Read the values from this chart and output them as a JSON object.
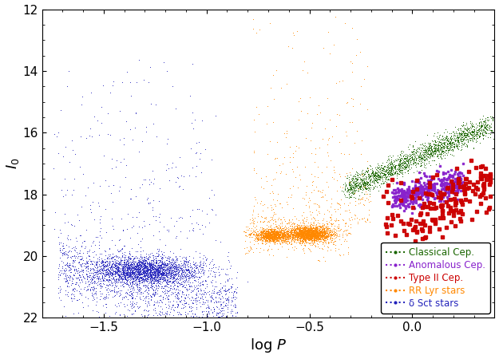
{
  "title": "",
  "xlabel": "log $P$",
  "ylabel": "$I_0$",
  "xlim": [
    -1.8,
    0.4
  ],
  "ylim": [
    22,
    12
  ],
  "xticks": [
    -1.5,
    -1.0,
    -0.5,
    0.0
  ],
  "yticks": [
    12,
    14,
    16,
    18,
    20,
    22
  ],
  "colors": {
    "classical_cep": "#1a6600",
    "anomalous_cep": "#8822cc",
    "type2_cep": "#cc0000",
    "rr_lyr": "#ff8800",
    "delta_sct": "#2222bb"
  },
  "legend_labels": [
    "Classical Cep.",
    "Anomalous Cep.",
    "Type II Cep.",
    "RR Lyr stars",
    "δ Sct stars"
  ],
  "seed": 42
}
